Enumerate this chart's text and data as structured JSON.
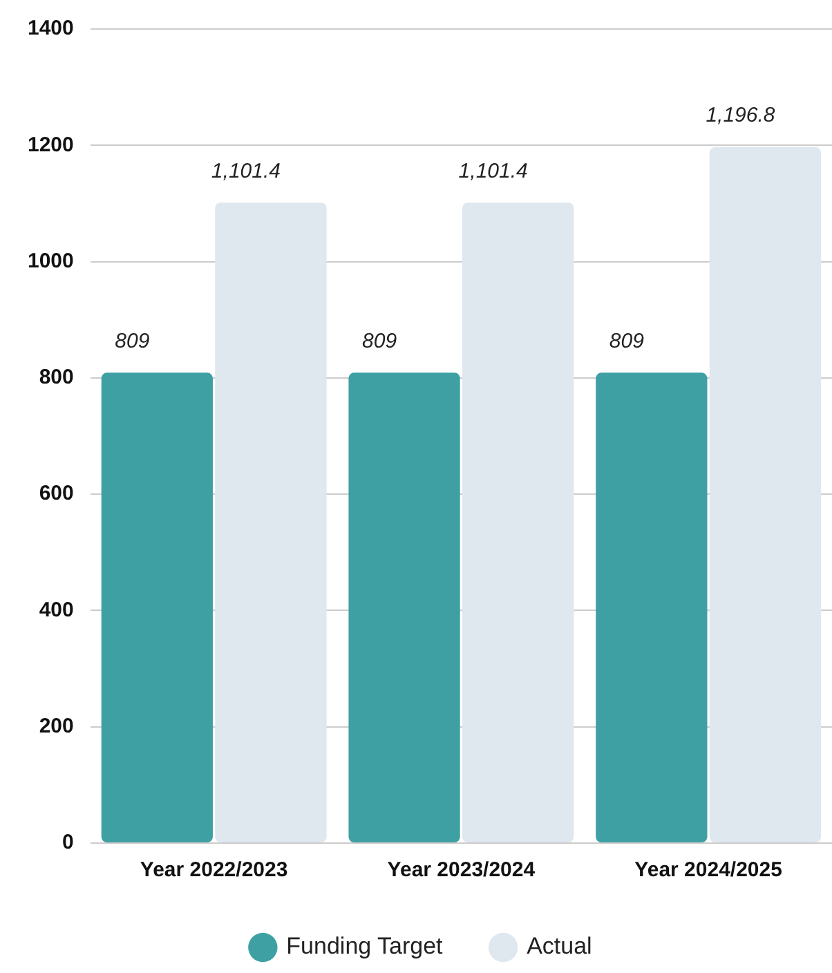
{
  "chart_data": {
    "type": "bar",
    "categories": [
      "Year 2022/2023",
      "Year 2023/2024",
      "Year 2024/2025"
    ],
    "series": [
      {
        "name": "Funding Target",
        "color": "#3fa0a3",
        "values": [
          809,
          809,
          809
        ],
        "value_labels": [
          "809",
          "809",
          "809"
        ]
      },
      {
        "name": "Actual",
        "color": "#dfe7ef",
        "values": [
          1101.4,
          1101.4,
          1196.8
        ],
        "value_labels": [
          "1,101.4",
          "1,101.4",
          "1,196.8"
        ]
      }
    ],
    "ylim": [
      0,
      1400
    ],
    "yticks": [
      0,
      200,
      400,
      600,
      800,
      1000,
      1200,
      1400
    ],
    "grid": "y",
    "legend": "bottom"
  }
}
